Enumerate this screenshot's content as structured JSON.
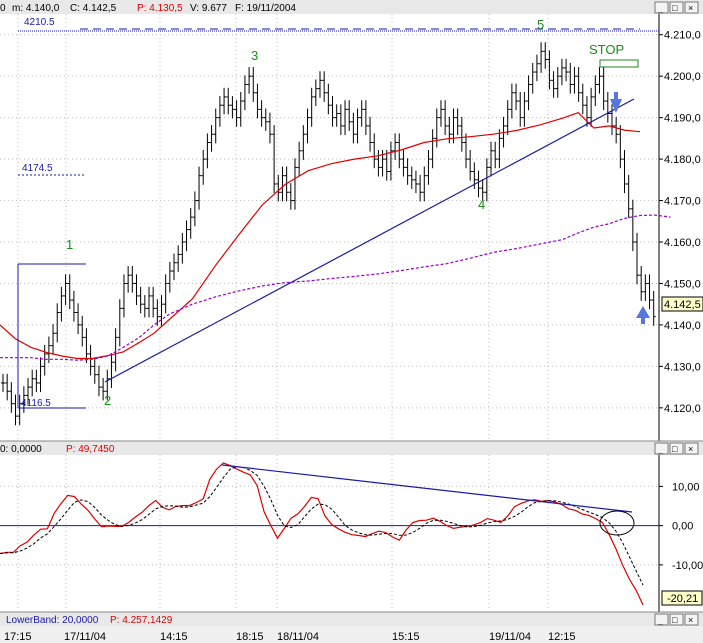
{
  "header": {
    "m_label": "m: 4.140,0",
    "c_label": "C: 4.142,5",
    "p_label": "P: 4.130,5",
    "v_label": "V: 9.677",
    "date_label": "F: 19/11/2004",
    "leading_label": "0"
  },
  "osc_header": {
    "zero_label": "0: 0,0000",
    "p_label": "P: 49,7450"
  },
  "bottom_header": {
    "band_label": "LowerBand: 20,0000",
    "p_label": "P: 4.257,1429"
  },
  "window_buttons": [
    "_",
    "□",
    "×"
  ],
  "annotations": {
    "wave_1": "1",
    "wave_2": "2",
    "wave_3": "3",
    "wave_4": "4",
    "wave_5": "5",
    "stop": "STOP",
    "level_top": "4210.5",
    "level_mid": "4174.5",
    "level_low": "4116.5"
  },
  "price_axis": {
    "ticks": [
      "4.210,0",
      "4.200,0",
      "4.190,0",
      "4.180,0",
      "4.170,0",
      "4.160,0",
      "4.150,0",
      "4.140,0",
      "4.130,0",
      "4.120,0"
    ],
    "last_price": "4.142,5"
  },
  "osc_axis": {
    "ticks": [
      "10,00",
      "0,00",
      "-10,00"
    ],
    "last_value": "-20,21"
  },
  "time_axis": {
    "labels": [
      "17:15",
      "17/11/04",
      "14:15",
      "18:15",
      "18/11/04",
      "15:15",
      "19/11/04",
      "12:15"
    ]
  },
  "colors": {
    "price_bars": "#000000",
    "ma_fast": "#e00000",
    "ma_slow": "#9900cc",
    "trendline": "#1a1aa8",
    "wave_labels": "#1a8c1a",
    "level_labels": "#1a1aa8",
    "osc_line": "#e00000",
    "osc_signal": "#000000",
    "arrows": "#5577dd"
  },
  "chart_data": [
    {
      "type": "line",
      "subtype": "ohlc-bars",
      "title": "",
      "ylim": [
        4112,
        4215
      ],
      "y_ticks": [
        4210,
        4200,
        4190,
        4180,
        4170,
        4160,
        4150,
        4140,
        4130,
        4120
      ],
      "x_labels": [
        "17:15",
        "17/11/04",
        "14:15",
        "18:15",
        "18/11/04",
        "15:15",
        "19/11/04",
        "12:15"
      ],
      "grid": true,
      "series": [
        {
          "values": [
            4126,
            4124,
            4121,
            4118,
            4121,
            4123,
            4125,
            4127,
            4126,
            4130,
            4133,
            4135,
            4138,
            4143,
            4147,
            4150,
            4146,
            4143,
            4140,
            4137,
            4133,
            4130,
            4128,
            4125,
            4124,
            4127,
            4131,
            4137,
            4144,
            4150,
            4152,
            4150,
            4147,
            4145,
            4144,
            4147,
            4144,
            4142,
            4145,
            4150,
            4153,
            4155,
            4157,
            4160,
            4163,
            4166,
            4170,
            4176,
            4180,
            4184,
            4186,
            4190,
            4193,
            4195,
            4193,
            4192,
            4190,
            4194,
            4198,
            4200,
            4196,
            4192,
            4190,
            4189,
            4186,
            4174,
            4172,
            4176,
            4172,
            4170,
            4178,
            4182,
            4186,
            4190,
            4195,
            4197,
            4199,
            4196,
            4193,
            4190,
            4191,
            4188,
            4192,
            4189,
            4186,
            4190,
            4192,
            4188,
            4184,
            4180,
            4178,
            4180,
            4177,
            4182,
            4184,
            4180,
            4178,
            4176,
            4175,
            4174,
            4172,
            4176,
            4180,
            4185,
            4190,
            4192,
            4188,
            4186,
            4190,
            4188,
            4184,
            4180,
            4177,
            4175,
            4173,
            4172,
            4178,
            4182,
            4180,
            4185,
            4188,
            4192,
            4196,
            4194,
            4190,
            4194,
            4198,
            4201,
            4203,
            4206,
            4204,
            4199,
            4197,
            4200,
            4202,
            4201,
            4198,
            4200,
            4196,
            4193,
            4190,
            4195,
            4198,
            4200,
            4194,
            4191,
            4188,
            4186,
            4180,
            4174,
            4168,
            4160,
            4152,
            4148,
            4150,
            4146,
            4142
          ]
        },
        {
          "name": "",
          "values": [
            4140,
            4136.7,
            4134.6,
            4133.4,
            4132.5,
            4131.9,
            4131.9,
            4132.6,
            4133.5,
            4135.7,
            4138,
            4141.3,
            4146.3,
            4154.5,
            4161.8,
            4168.9,
            4173.9,
            4177.2,
            4178.9,
            4180,
            4180.8,
            4182.2,
            4184,
            4184.9,
            4185.4,
            4186,
            4186.9,
            4188.2,
            4189.9,
            4191.2,
            4187.5,
            4188,
            4187,
            4186.6
          ],
          "x_positions": [
            0,
            3.1,
            6.3,
            9.4,
            12.6,
            15.7,
            18.8,
            22,
            25.1,
            28.3,
            31.4,
            34.5,
            39.2,
            44,
            48.7,
            53.4,
            58.1,
            62.8,
            67.5,
            72.2,
            77,
            81.7,
            86.4,
            91.1,
            95.8,
            100.5,
            105.2,
            109.9,
            114.7,
            117.8,
            121,
            124.1,
            127.2,
            130.4
          ],
          "note_color": "ma_fast"
        },
        {
          "name": "",
          "values": [
            4132.1,
            4132.1,
            4132.1,
            4131.7,
            4131.7,
            4131.5,
            4131.7,
            4132.5,
            4134.6,
            4136.9,
            4140,
            4142.6,
            4145,
            4146.8,
            4148.2,
            4149.4,
            4150.2,
            4150.6,
            4151.2,
            4151.7,
            4152.3,
            4153.1,
            4154,
            4154.8,
            4156.1,
            4157.5,
            4158.4,
            4159.5,
            4160.6,
            4162.2,
            4163.6,
            4164.4,
            4165.7,
            4166.4,
            4166.5,
            4166
          ],
          "x_positions": [
            0,
            3.1,
            6.3,
            9.4,
            12.6,
            15.7,
            18.8,
            22,
            25.1,
            28.3,
            31.4,
            34.5,
            39.2,
            44,
            48.7,
            53.4,
            58.1,
            62.8,
            67.5,
            72.2,
            77,
            81.7,
            86.4,
            91.1,
            95.8,
            100.5,
            105.2,
            109.9,
            114.7,
            117.8,
            121,
            124.1,
            127.2,
            130.4,
            133.5,
            136.6
          ],
          "note_color": "ma_slow"
        }
      ]
    },
    {
      "type": "line",
      "title": "",
      "ylim": [
        -22,
        18
      ],
      "y_ticks": [
        10,
        0,
        -10
      ],
      "grid": true,
      "series": [
        {
          "values": [
            -7.1,
            -6.8,
            -6.8,
            -5.1,
            -4.2,
            -2.4,
            -0.9,
            -0.8,
            3.1,
            5.6,
            7.7,
            7.4,
            5.5,
            3.9,
            1.7,
            -0.3,
            -0.1,
            -0.2,
            -0.2,
            0.8,
            2.2,
            3.4,
            5.1,
            6.4,
            4.7,
            4,
            4.9,
            5.1,
            5.1,
            5.9,
            6.8,
            11.8,
            14.4,
            16,
            15.3,
            14.4,
            13.6,
            12.9,
            10.2,
            3.6,
            0.1,
            -3.2,
            -0.7,
            1.9,
            3,
            4.9,
            7.2,
            6.9,
            2.5,
            0.3,
            -0.8,
            -1.7,
            -2.3,
            -2.5,
            -2.8,
            -2,
            -1.4,
            -1.8,
            -2.9,
            -3.7,
            -1.1,
            0.8,
            1.3,
            1.4,
            1.9,
            1.1,
            0,
            -0.7,
            -0.4,
            -0.2,
            0.2,
            0.8,
            1.8,
            1.4,
            0.8,
            2.4,
            4.8,
            5.7,
            6.3,
            6.6,
            6.2,
            6.4,
            6,
            5.4,
            4.3,
            3.9,
            3,
            2.6,
            1.8,
            0.8,
            -2.3,
            -5.9,
            -10.1,
            -13.7,
            -16.5,
            -20.2
          ]
        }
      ]
    }
  ]
}
